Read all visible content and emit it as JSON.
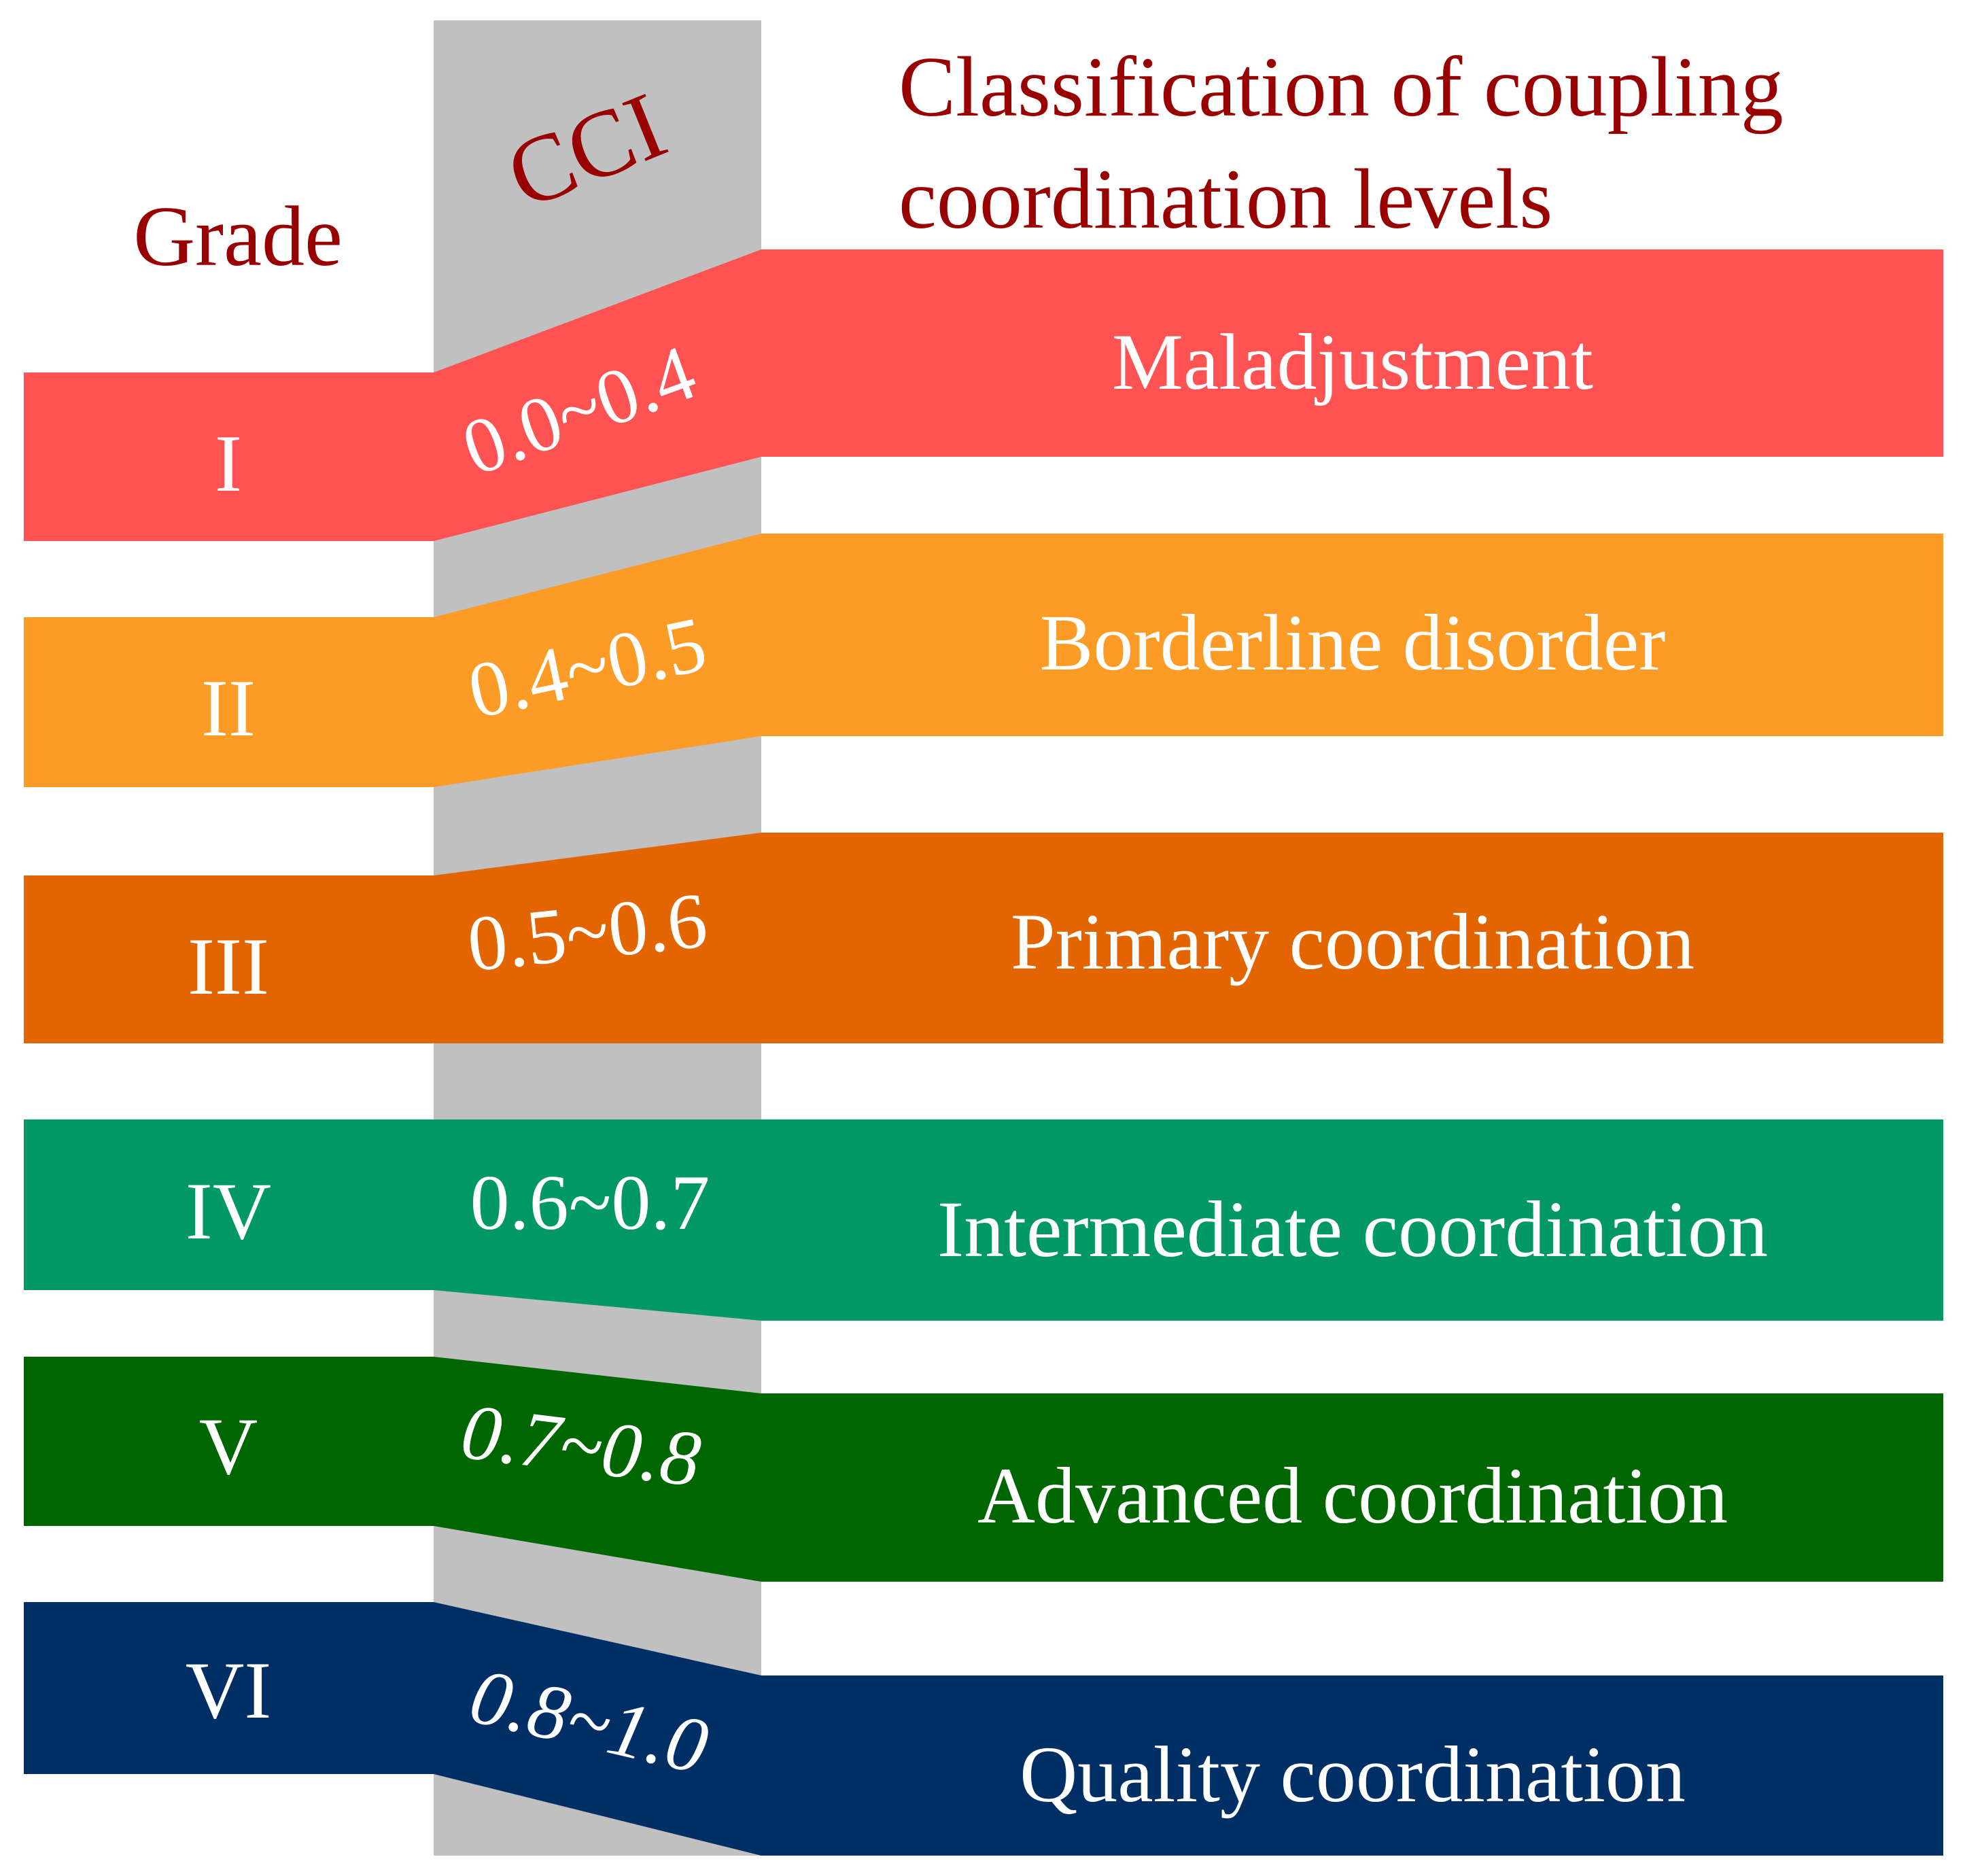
{
  "headers": {
    "grade": "Grade",
    "cci": "CCI",
    "classification_line1": "Classification of coupling",
    "classification_line2": "coordination levels"
  },
  "colors": {
    "header_text": "#990000",
    "cci_column": "#c0c0c0",
    "band_text": "#ffffff"
  },
  "levels": [
    {
      "grade": "I",
      "cci": "0.0~0.4",
      "classification": "Maladjustment",
      "color": "#ff5252"
    },
    {
      "grade": "II",
      "cci": "0.4~0.5",
      "classification": "Borderline disorder",
      "color": "#fd9b27"
    },
    {
      "grade": "III",
      "cci": "0.5~0.6",
      "classification": "Primary coordination",
      "color": "#e36500"
    },
    {
      "grade": "IV",
      "cci": "0.6~0.7",
      "classification": "Intermediate coordination",
      "color": "#009965"
    },
    {
      "grade": "V",
      "cci": "0.7~0.8",
      "classification": "Advanced coordination",
      "color": "#006600"
    },
    {
      "grade": "VI",
      "cci": "0.8~1.0",
      "classification": "Quality coordination",
      "color": "#002f66"
    }
  ]
}
